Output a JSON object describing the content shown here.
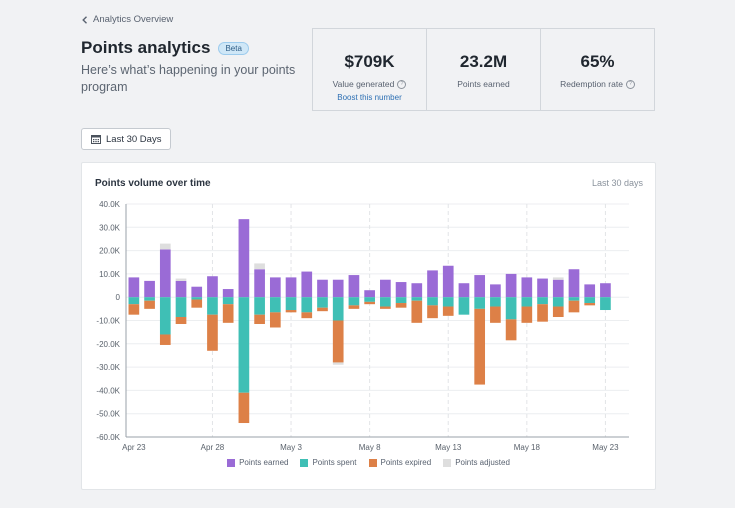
{
  "nav": {
    "back_label": "Analytics Overview"
  },
  "header": {
    "title": "Points analytics",
    "badge": "Beta",
    "subtitle": "Here’s what’s happening in your points program"
  },
  "stats": [
    {
      "value": "$709K",
      "label": "Value generated",
      "link": "Boost this number"
    },
    {
      "value": "23.2M",
      "label": "Points earned"
    },
    {
      "value": "65%",
      "label": "Redemption rate"
    }
  ],
  "range_button": {
    "label": "Last 30 Days",
    "icon": "calendar-icon"
  },
  "card": {
    "title": "Points volume over time",
    "range": "Last 30 days"
  },
  "colors": {
    "earned": "#9a6bd6",
    "spent": "#3fbfb5",
    "expired": "#dd8047",
    "adjusted": "#dedede"
  },
  "chart_data": {
    "type": "bar",
    "stacked": true,
    "x": [
      "Apr 23",
      "Apr 24",
      "Apr 25",
      "Apr 26",
      "Apr 27",
      "Apr 28",
      "Apr 29",
      "Apr 30",
      "May 1",
      "May 2",
      "May 3",
      "May 4",
      "May 5",
      "May 6",
      "May 7",
      "May 8",
      "May 9",
      "May 10",
      "May 11",
      "May 12",
      "May 13",
      "May 14",
      "May 15",
      "May 16",
      "May 17",
      "May 18",
      "May 19",
      "May 20",
      "May 21",
      "May 22",
      "May 23",
      "May 24"
    ],
    "x_tick_labels": [
      "Apr 23",
      "Apr 28",
      "May 3",
      "May 8",
      "May 13",
      "May 18",
      "May 23"
    ],
    "ylim": [
      -60000,
      40000
    ],
    "y_ticks": [
      "40.0K",
      "30.0K",
      "20.0K",
      "10.0K",
      "0",
      "-10.0K",
      "-20.0K",
      "-30.0K",
      "-40.0K",
      "-50.0K",
      "-60.0K"
    ],
    "y_tick_values": [
      40000,
      30000,
      20000,
      10000,
      0,
      -10000,
      -20000,
      -30000,
      -40000,
      -50000,
      -60000
    ],
    "grid": true,
    "legend_position": "bottom",
    "series": [
      {
        "name": "Points earned",
        "values": [
          8500,
          7000,
          20500,
          7000,
          4500,
          9000,
          3500,
          33500,
          12000,
          8500,
          8500,
          11000,
          7500,
          7500,
          9500,
          3000,
          7500,
          6500,
          6000,
          11500,
          13500,
          6000,
          9500,
          5500,
          10000,
          8500,
          8000,
          7500,
          12000,
          5500,
          6000,
          0
        ]
      },
      {
        "name": "Points spent",
        "values": [
          -3000,
          -1500,
          -16000,
          -8500,
          -1000,
          -7500,
          -3000,
          -41000,
          -7500,
          -6500,
          -5500,
          -6500,
          -4500,
          -10000,
          -3500,
          -2000,
          -4000,
          -2500,
          -1500,
          -3500,
          -4000,
          -7500,
          -5000,
          -4000,
          -9500,
          -4000,
          -3000,
          -4000,
          -1500,
          -2500,
          -5500,
          0
        ]
      },
      {
        "name": "Points expired",
        "values": [
          -4500,
          -3500,
          -4500,
          -3000,
          -3500,
          -15500,
          -8000,
          -13000,
          -4000,
          -6500,
          -1000,
          -2500,
          -1500,
          -18000,
          -1500,
          -1000,
          -1000,
          -2000,
          -9500,
          -5500,
          -4000,
          0,
          -32500,
          -7000,
          -9000,
          -7000,
          -7500,
          -4500,
          -5000,
          -1000,
          0,
          0
        ]
      },
      {
        "name": "Points adjusted",
        "values": [
          0,
          0,
          2500,
          1000,
          0,
          0,
          0,
          0,
          2500,
          0,
          0,
          0,
          0,
          -1000,
          0,
          0,
          0,
          0,
          0,
          0,
          0,
          0,
          0,
          0,
          0,
          0,
          0,
          1000,
          0,
          0,
          0,
          0
        ]
      }
    ]
  }
}
